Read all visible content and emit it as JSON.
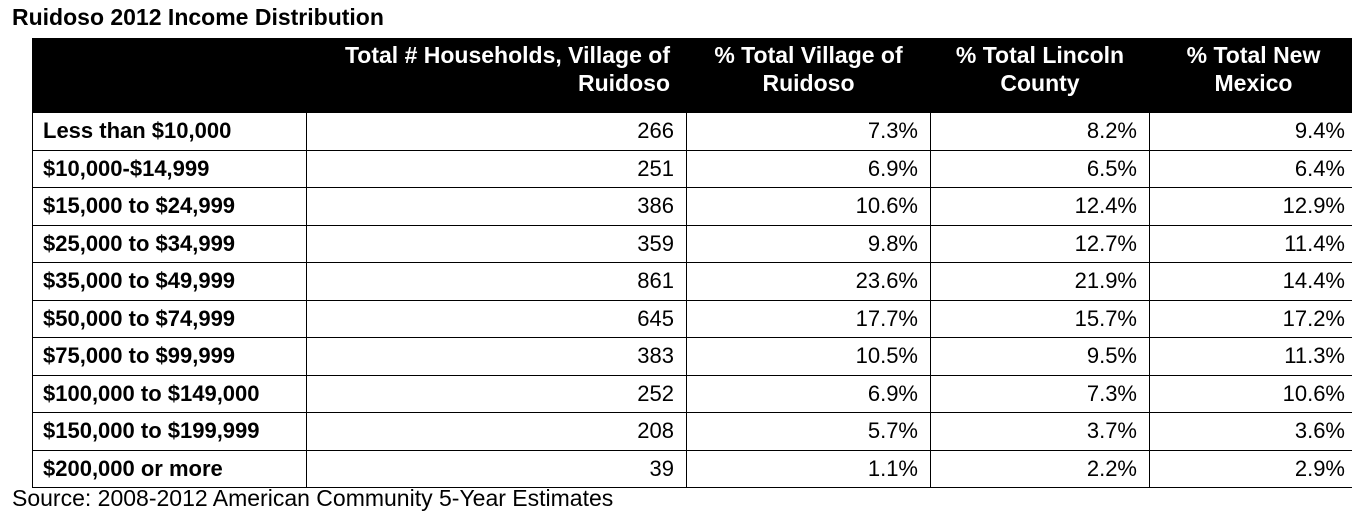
{
  "title": "Ruidoso 2012 Income Distribution",
  "source": "Source: 2008-2012 American Community 5-Year Estimates",
  "chart_data": {
    "type": "table",
    "title": "Ruidoso 2012 Income Distribution",
    "columns": [
      "",
      "Total # Households, Village of Ruidoso",
      "% Total Village of Ruidoso",
      "% Total Lincoln County",
      "% Total New Mexico"
    ],
    "rows": [
      {
        "label": "Less than $10,000",
        "households": "266",
        "village_pct": "7.3%",
        "county_pct": "8.2%",
        "nm_pct": "9.4%"
      },
      {
        "label": "$10,000-$14,999",
        "households": "251",
        "village_pct": "6.9%",
        "county_pct": "6.5%",
        "nm_pct": "6.4%"
      },
      {
        "label": "$15,000 to $24,999",
        "households": "386",
        "village_pct": "10.6%",
        "county_pct": "12.4%",
        "nm_pct": "12.9%"
      },
      {
        "label": "$25,000 to $34,999",
        "households": "359",
        "village_pct": "9.8%",
        "county_pct": "12.7%",
        "nm_pct": "11.4%"
      },
      {
        "label": "$35,000 to $49,999",
        "households": "861",
        "village_pct": "23.6%",
        "county_pct": "21.9%",
        "nm_pct": "14.4%"
      },
      {
        "label": "$50,000 to $74,999",
        "households": "645",
        "village_pct": "17.7%",
        "county_pct": "15.7%",
        "nm_pct": "17.2%"
      },
      {
        "label": "$75,000 to $99,999",
        "households": "383",
        "village_pct": "10.5%",
        "county_pct": "9.5%",
        "nm_pct": "11.3%"
      },
      {
        "label": "$100,000 to $149,000",
        "households": "252",
        "village_pct": "6.9%",
        "county_pct": "7.3%",
        "nm_pct": "10.6%"
      },
      {
        "label": "$150,000 to $199,999",
        "households": "208",
        "village_pct": "5.7%",
        "county_pct": "3.7%",
        "nm_pct": "3.6%"
      },
      {
        "label": "$200,000 or more",
        "households": "39",
        "village_pct": "1.1%",
        "county_pct": "2.2%",
        "nm_pct": "2.9%"
      }
    ]
  }
}
